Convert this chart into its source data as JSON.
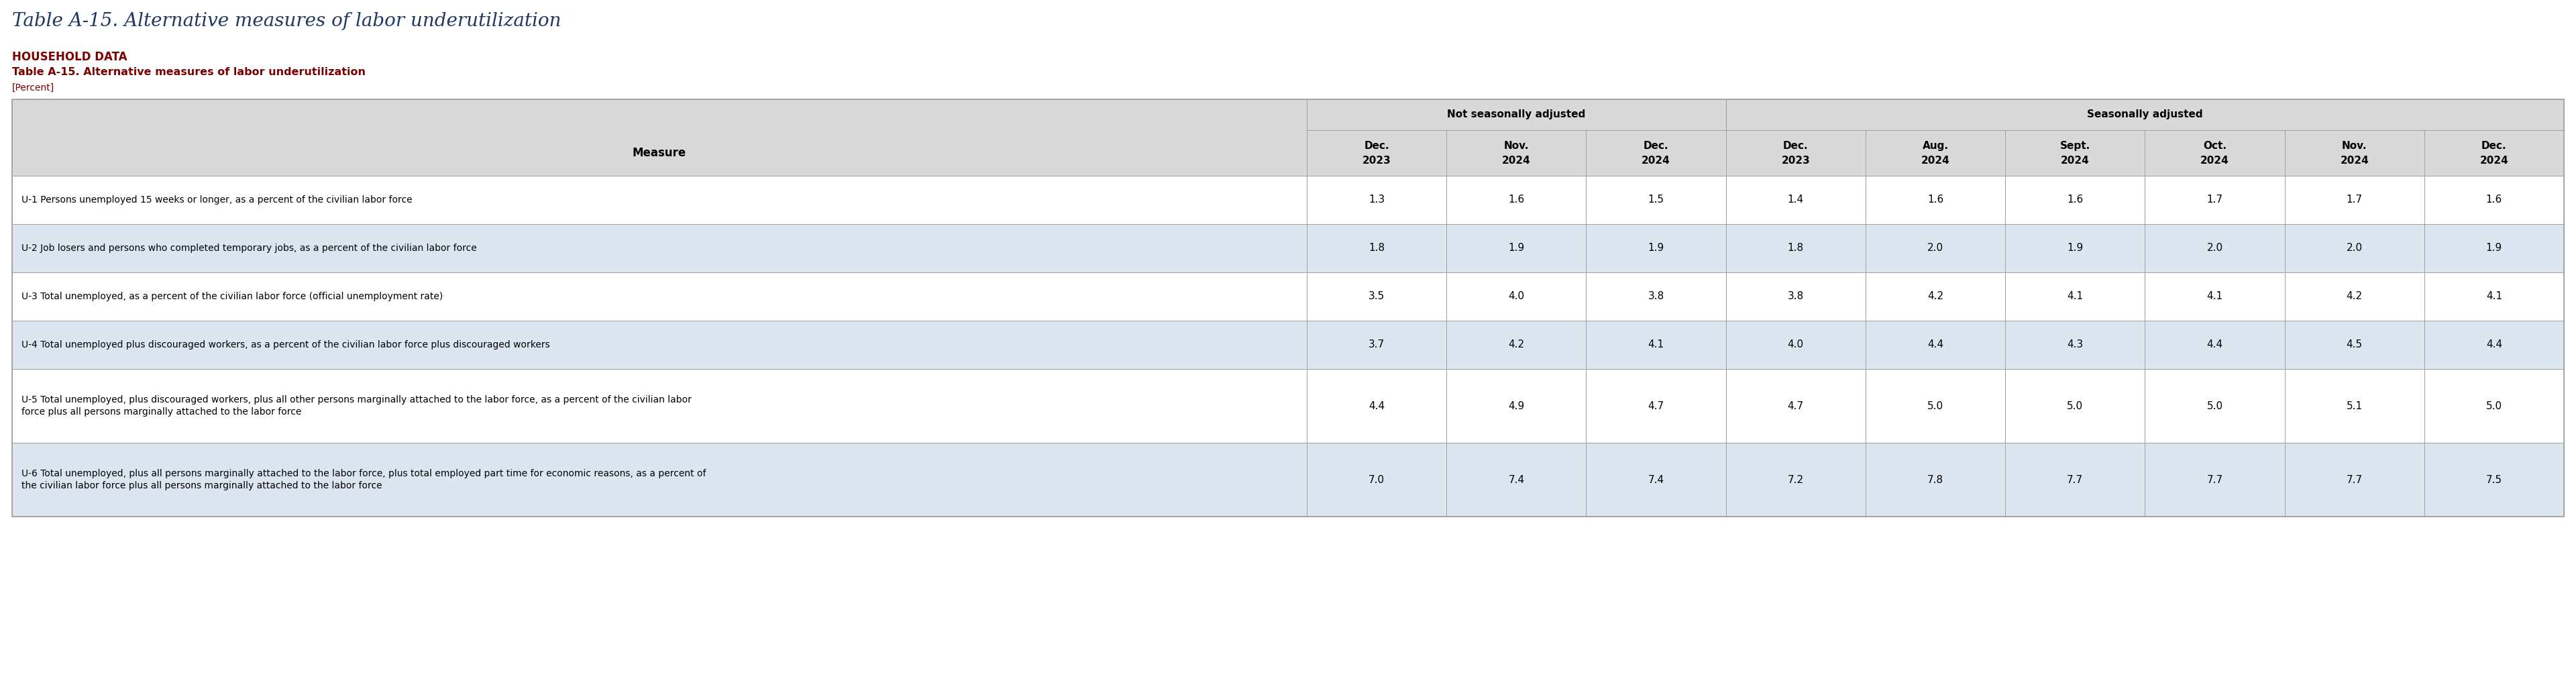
{
  "page_title": "Table A-15. Alternative measures of labor underutilization",
  "section_header1": "HOUSEHOLD DATA",
  "section_header2": "Table A-15. Alternative measures of labor underutilization",
  "section_header3": "[Percent]",
  "col_group1_label": "Not seasonally adjusted",
  "col_group2_label": "Seasonally adjusted",
  "col_headers": [
    "Dec.\n2023",
    "Nov.\n2024",
    "Dec.\n2024",
    "Dec.\n2023",
    "Aug.\n2024",
    "Sept.\n2024",
    "Oct.\n2024",
    "Nov.\n2024",
    "Dec.\n2024"
  ],
  "measure_col_header": "Measure",
  "rows": [
    {
      "label": "U-1 Persons unemployed 15 weeks or longer, as a percent of the civilian labor force",
      "values": [
        1.3,
        1.6,
        1.5,
        1.4,
        1.6,
        1.6,
        1.7,
        1.7,
        1.6
      ],
      "shade": false
    },
    {
      "label": "U-2 Job losers and persons who completed temporary jobs, as a percent of the civilian labor force",
      "values": [
        1.8,
        1.9,
        1.9,
        1.8,
        2.0,
        1.9,
        2.0,
        2.0,
        1.9
      ],
      "shade": true
    },
    {
      "label": "U-3 Total unemployed, as a percent of the civilian labor force (official unemployment rate)",
      "values": [
        3.5,
        4.0,
        3.8,
        3.8,
        4.2,
        4.1,
        4.1,
        4.2,
        4.1
      ],
      "shade": false
    },
    {
      "label": "U-4 Total unemployed plus discouraged workers, as a percent of the civilian labor force plus discouraged workers",
      "values": [
        3.7,
        4.2,
        4.1,
        4.0,
        4.4,
        4.3,
        4.4,
        4.5,
        4.4
      ],
      "shade": true
    },
    {
      "label": "U-5 Total unemployed, plus discouraged workers, plus all other persons marginally attached to the labor force, as a percent of the civilian labor\nforce plus all persons marginally attached to the labor force",
      "values": [
        4.4,
        4.9,
        4.7,
        4.7,
        5.0,
        5.0,
        5.0,
        5.1,
        5.0
      ],
      "shade": false
    },
    {
      "label": "U-6 Total unemployed, plus all persons marginally attached to the labor force, plus total employed part time for economic reasons, as a percent of\nthe civilian labor force plus all persons marginally attached to the labor force",
      "values": [
        7.0,
        7.4,
        7.4,
        7.2,
        7.8,
        7.7,
        7.7,
        7.7,
        7.5
      ],
      "shade": true
    }
  ],
  "bg_color": "#ffffff",
  "header_bg": "#d9d9d9",
  "shade_color": "#dce6f1",
  "page_title_color": "#1f3864",
  "section_header_color": "#7b0000",
  "header_text_color": "#000000",
  "cell_text_color": "#000000",
  "border_color": "#a0a0a0",
  "nsa_cols": 3,
  "sa_cols": 6
}
